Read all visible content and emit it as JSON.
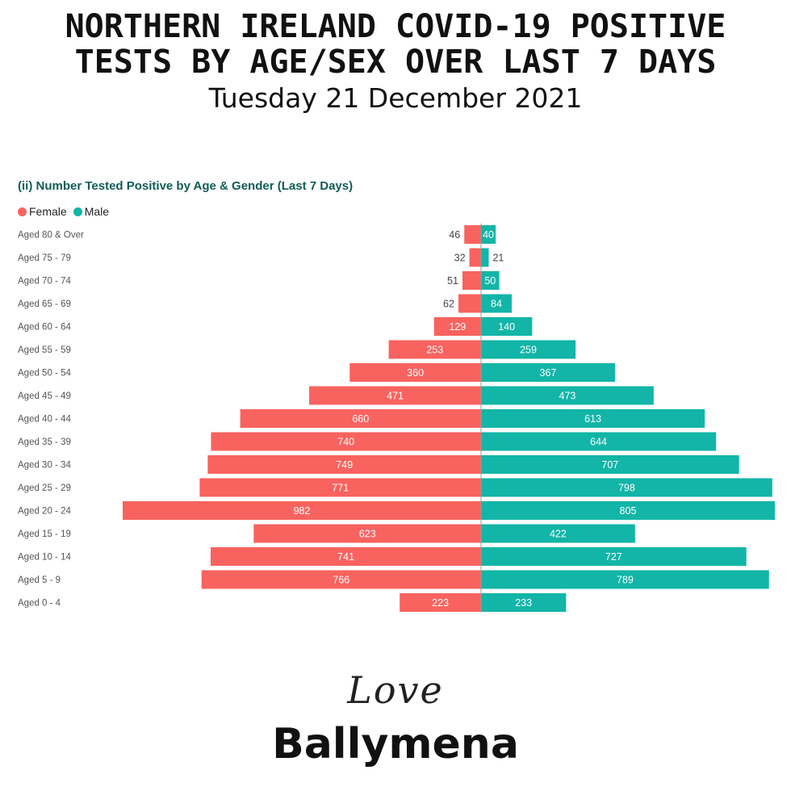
{
  "header": {
    "line1": "NORTHERN IRELAND COVID-19 POSITIVE",
    "line2": "TESTS BY AGE/SEX OVER LAST 7 DAYS",
    "date": "Tuesday 21 December 2021"
  },
  "colors": {
    "female": "#f8635f",
    "male": "#12b5a7",
    "title": "#0f5c58"
  },
  "chart_data": {
    "type": "bar",
    "orientation": "horizontal",
    "layout": "population-pyramid",
    "title": "(ii) Number Tested Positive by Age & Gender (Last 7 Days)",
    "legend_position": "top-left",
    "grid": false,
    "categories": [
      "Aged 80 & Over",
      "Aged 75 - 79",
      "Aged 70 - 74",
      "Aged 65 - 69",
      "Aged 60 - 64",
      "Aged 55 - 59",
      "Aged 50 - 54",
      "Aged 45 - 49",
      "Aged 40 - 44",
      "Aged 35 - 39",
      "Aged 30 - 34",
      "Aged 25 - 29",
      "Aged 20 - 24",
      "Aged 15 - 19",
      "Aged 10 - 14",
      "Aged 5 - 9",
      "Aged 0 - 4"
    ],
    "series": [
      {
        "name": "Female",
        "color": "#f8635f",
        "values": [
          46,
          32,
          51,
          62,
          129,
          253,
          360,
          471,
          660,
          740,
          749,
          771,
          982,
          623,
          741,
          766,
          223
        ]
      },
      {
        "name": "Male",
        "color": "#12b5a7",
        "values": [
          40,
          21,
          50,
          84,
          140,
          259,
          367,
          473,
          613,
          644,
          707,
          798,
          805,
          422,
          727,
          789,
          233
        ]
      }
    ]
  },
  "logo": {
    "script_word": "Love",
    "wordmark": "Ballymena"
  }
}
